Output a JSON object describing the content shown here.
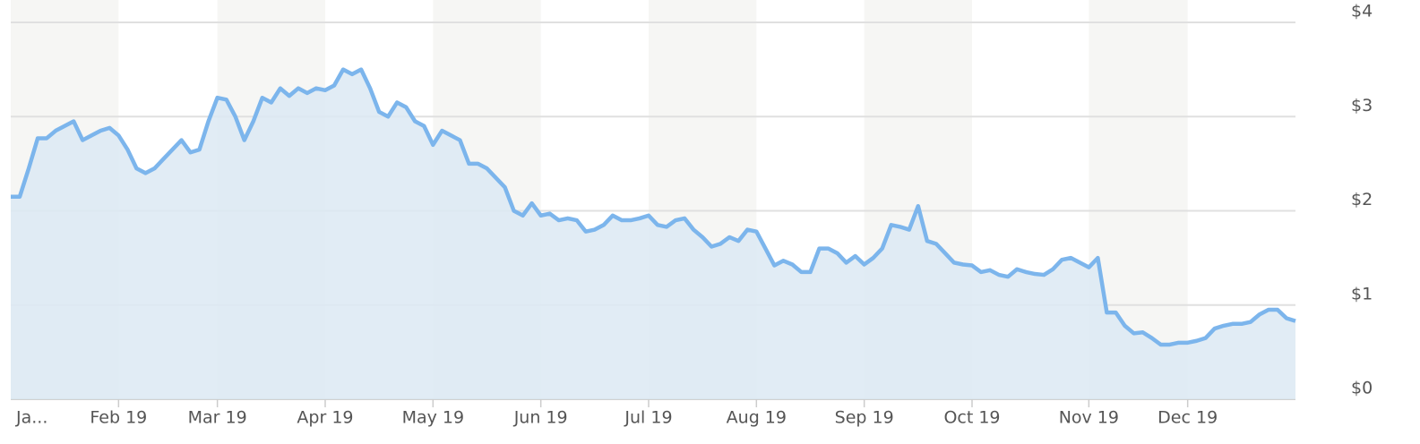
{
  "chart_data": {
    "type": "area",
    "categories": [
      "Ja...",
      null,
      null,
      null,
      null,
      null,
      null,
      null,
      null,
      null,
      null,
      null,
      "Feb 19",
      null,
      null,
      null,
      null,
      null,
      null,
      null,
      null,
      null,
      null,
      "Mar 19",
      null,
      null,
      null,
      null,
      null,
      null,
      null,
      null,
      null,
      null,
      null,
      "Apr 19",
      null,
      null,
      null,
      null,
      null,
      null,
      null,
      null,
      null,
      null,
      null,
      "May 19",
      null,
      null,
      null,
      null,
      null,
      null,
      null,
      null,
      null,
      null,
      null,
      "Jun 19",
      null,
      null,
      null,
      null,
      null,
      null,
      null,
      null,
      null,
      null,
      null,
      "Jul 19",
      null,
      null,
      null,
      null,
      null,
      null,
      null,
      null,
      null,
      null,
      null,
      "Aug 19",
      null,
      null,
      null,
      null,
      null,
      null,
      null,
      null,
      null,
      null,
      null,
      "Sep 19",
      null,
      null,
      null,
      null,
      null,
      null,
      null,
      null,
      null,
      null,
      null,
      "Oct 19",
      null,
      null,
      null,
      null,
      null,
      null,
      null,
      null,
      null,
      null,
      null,
      null,
      "Nov 19",
      null,
      null,
      null,
      null,
      null,
      null,
      null,
      null,
      null,
      null,
      "Dec 19",
      null,
      null,
      null,
      null,
      null,
      null,
      null,
      null,
      null,
      null,
      null,
      null
    ],
    "values": [
      2.15,
      2.15,
      2.45,
      2.77,
      2.77,
      2.85,
      2.9,
      2.95,
      2.75,
      2.8,
      2.85,
      2.88,
      2.8,
      2.65,
      2.45,
      2.4,
      2.45,
      2.55,
      2.65,
      2.75,
      2.62,
      2.65,
      2.95,
      3.2,
      3.18,
      3.0,
      2.75,
      2.95,
      3.2,
      3.15,
      3.3,
      3.22,
      3.3,
      3.25,
      3.3,
      3.28,
      3.33,
      3.5,
      3.45,
      3.5,
      3.3,
      3.05,
      3.0,
      3.15,
      3.1,
      2.95,
      2.9,
      2.7,
      2.85,
      2.8,
      2.75,
      2.5,
      2.5,
      2.45,
      2.35,
      2.25,
      2.0,
      1.95,
      2.08,
      1.95,
      1.97,
      1.9,
      1.92,
      1.9,
      1.78,
      1.8,
      1.85,
      1.95,
      1.9,
      1.9,
      1.92,
      1.95,
      1.85,
      1.83,
      1.9,
      1.92,
      1.8,
      1.72,
      1.62,
      1.65,
      1.72,
      1.68,
      1.8,
      1.78,
      1.6,
      1.42,
      1.47,
      1.43,
      1.35,
      1.35,
      1.6,
      1.6,
      1.55,
      1.45,
      1.52,
      1.43,
      1.5,
      1.6,
      1.85,
      1.83,
      1.8,
      2.05,
      1.68,
      1.65,
      1.55,
      1.45,
      1.43,
      1.42,
      1.35,
      1.37,
      1.32,
      1.3,
      1.38,
      1.35,
      1.33,
      1.32,
      1.38,
      1.48,
      1.5,
      1.45,
      1.4,
      1.5,
      0.92,
      0.92,
      0.78,
      0.7,
      0.71,
      0.65,
      0.58,
      0.58,
      0.6,
      0.6,
      0.62,
      0.65,
      0.75,
      0.78,
      0.8,
      0.8,
      0.82,
      0.9,
      0.95,
      0.95,
      0.86,
      0.83
    ],
    "color": "#7cb5ec",
    "fill_color": "#dce9f3",
    "ylim": [
      0,
      4
    ],
    "yticks": [
      {
        "value": 0,
        "label": "$0"
      },
      {
        "value": 1,
        "label": "$1"
      },
      {
        "value": 2,
        "label": "$2"
      },
      {
        "value": 3,
        "label": "$3"
      },
      {
        "value": 4,
        "label": "$4"
      }
    ],
    "grid": true
  }
}
